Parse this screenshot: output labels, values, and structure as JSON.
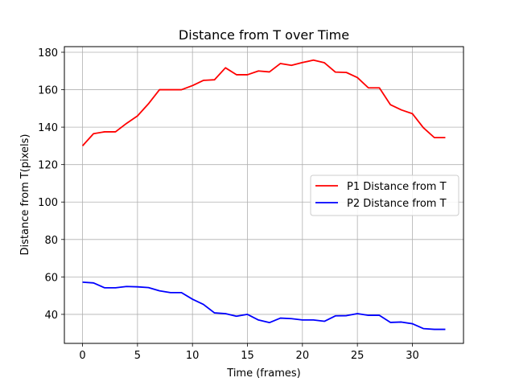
{
  "chart_data": {
    "type": "line",
    "title": "Distance from T over Time",
    "xlabel": "Time (frames)",
    "ylabel": "Distance from T(pixels)",
    "xlim": [
      -1.65,
      34.65
    ],
    "ylim": [
      24.5,
      183
    ],
    "xticks": [
      0,
      5,
      10,
      15,
      20,
      25,
      30
    ],
    "yticks": [
      40,
      60,
      80,
      100,
      120,
      140,
      160,
      180
    ],
    "grid": true,
    "legend_position": "center-right",
    "x": [
      0,
      1,
      2,
      3,
      4,
      5,
      6,
      7,
      8,
      9,
      10,
      11,
      12,
      13,
      14,
      15,
      16,
      17,
      18,
      19,
      20,
      21,
      22,
      23,
      24,
      25,
      26,
      27,
      28,
      29,
      30,
      31,
      32,
      33
    ],
    "series": [
      {
        "name": "P1 Distance from T",
        "color": "#ff0000",
        "values": [
          130,
          136.5,
          137.5,
          137.5,
          142,
          146,
          152.5,
          160,
          160,
          160,
          162.2,
          165,
          165.3,
          171.7,
          168,
          168,
          170,
          169.5,
          174,
          173,
          174.5,
          175.8,
          174.4,
          169.4,
          169.2,
          166.5,
          161,
          161,
          152,
          149.2,
          147.2,
          139.7,
          134.4,
          134.4
        ]
      },
      {
        "name": "P2 Distance from T",
        "color": "#0000ff",
        "values": [
          57.2,
          56.8,
          54.2,
          54.2,
          54.9,
          54.7,
          54.3,
          52.6,
          51.6,
          51.6,
          48.1,
          45.3,
          40.8,
          40.4,
          39,
          40,
          37,
          35.6,
          38,
          37.7,
          37,
          37,
          36.3,
          39.2,
          39.3,
          40.4,
          39.5,
          39.5,
          35.7,
          35.9,
          35,
          32.4,
          32,
          32
        ]
      }
    ]
  }
}
